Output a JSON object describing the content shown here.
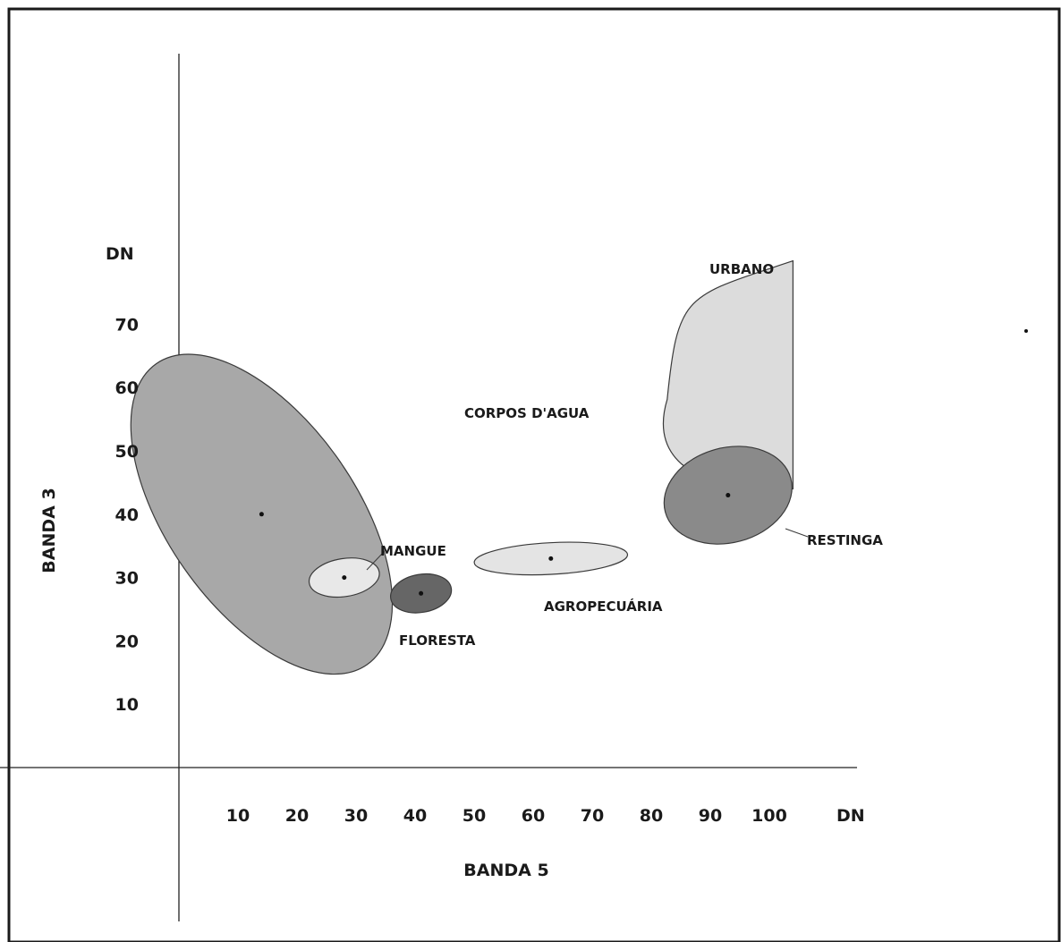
{
  "chart_data": {
    "type": "scatter",
    "title": "",
    "xlabel": "BANDA 5",
    "ylabel": "BANDA 3",
    "x_unit_label": "DN",
    "y_unit_label": "DN",
    "xlim": [
      0,
      110
    ],
    "ylim": [
      0,
      80
    ],
    "x_ticks": [
      10,
      20,
      30,
      40,
      50,
      60,
      70,
      80,
      90,
      100
    ],
    "y_ticks": [
      10,
      20,
      30,
      40,
      50,
      60,
      70
    ],
    "grid": false,
    "series": [
      {
        "name": "CORPOS D'AGUA",
        "center": [
          14,
          40
        ],
        "radius": [
          16,
          29
        ],
        "rotation_deg": 35,
        "fill": "#a8a8a8"
      },
      {
        "name": "MANGUE",
        "center": [
          28,
          30
        ],
        "radius": [
          6,
          3
        ],
        "rotation_deg": 9,
        "fill": "#e8e8e8"
      },
      {
        "name": "FLORESTA",
        "center": [
          41,
          27.5
        ],
        "radius": [
          5.2,
          3
        ],
        "rotation_deg": 10,
        "fill": "#666666"
      },
      {
        "name": "AGROPECUÁRIA",
        "center": [
          63,
          33
        ],
        "radius": [
          13,
          2.5
        ],
        "rotation_deg": 3,
        "fill": "#e4e4e4"
      },
      {
        "name": "URBANO",
        "center": [
          93.5,
          58
        ],
        "x_range": [
          83,
          104
        ],
        "y_range": [
          44,
          80
        ],
        "fill": "#dcdcdc"
      },
      {
        "name": "RESTINGA",
        "center": [
          93,
          43
        ],
        "radius": [
          11,
          7.5
        ],
        "rotation_deg": 15,
        "fill": "#8a8a8a"
      }
    ]
  }
}
